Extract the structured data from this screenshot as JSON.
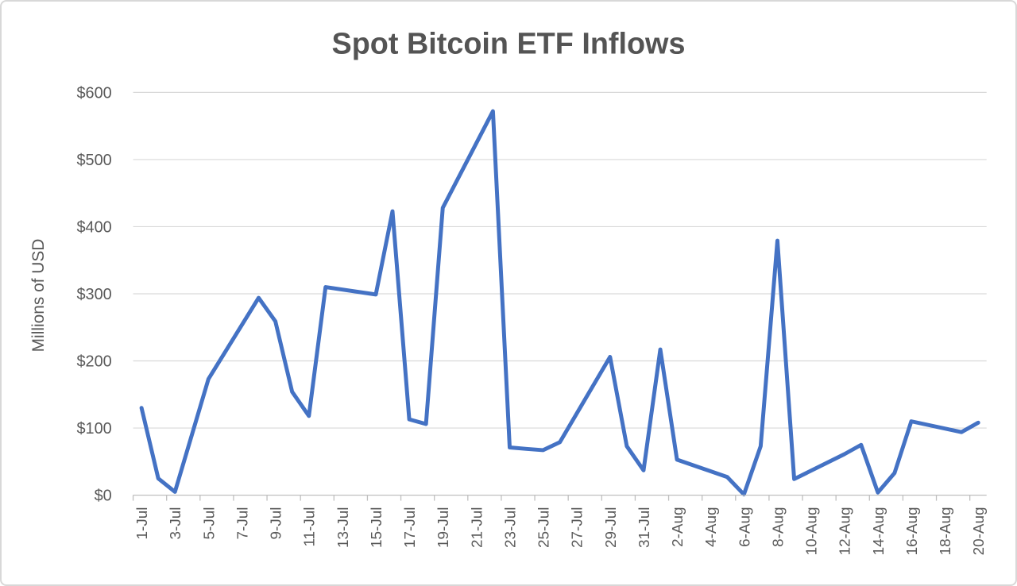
{
  "chart": {
    "title": "Spot Bitcoin ETF Inflows",
    "y_axis_title": "Millions of USD",
    "colors": {
      "line": "#4472C4",
      "gridline": "#D9D9D9",
      "axis_line": "#BFBFBF",
      "tick_mark": "#BFBFBF",
      "tick_label": "#595959",
      "title": "#545454",
      "background": "#FFFFFF",
      "frame_border": "#D8D8D8"
    }
  },
  "chart_data": {
    "type": "line",
    "title": "Spot Bitcoin ETF Inflows",
    "xlabel": "",
    "ylabel": "Millions of USD",
    "ylim": [
      0,
      600
    ],
    "grid": "horizontal",
    "legend": "none",
    "gap_handling": "connect-across-blank-days",
    "y_tick_values": [
      0,
      100,
      200,
      300,
      400,
      500,
      600
    ],
    "y_tick_labels": [
      "$0",
      "$100",
      "$200",
      "$300",
      "$400",
      "$500",
      "$600"
    ],
    "x_tick_label_interval": 2,
    "x_tick_labels": [
      "1-Jul",
      "3-Jul",
      "5-Jul",
      "7-Jul",
      "9-Jul",
      "11-Jul",
      "13-Jul",
      "15-Jul",
      "17-Jul",
      "19-Jul",
      "21-Jul",
      "23-Jul",
      "25-Jul",
      "27-Jul",
      "29-Jul",
      "31-Jul",
      "2-Aug",
      "4-Aug",
      "6-Aug",
      "8-Aug",
      "10-Aug",
      "12-Aug",
      "14-Aug",
      "16-Aug",
      "18-Aug",
      "20-Aug"
    ],
    "categories": [
      "1-Jul",
      "2-Jul",
      "3-Jul",
      "4-Jul",
      "5-Jul",
      "6-Jul",
      "7-Jul",
      "8-Jul",
      "9-Jul",
      "10-Jul",
      "11-Jul",
      "12-Jul",
      "13-Jul",
      "14-Jul",
      "15-Jul",
      "16-Jul",
      "17-Jul",
      "18-Jul",
      "19-Jul",
      "20-Jul",
      "21-Jul",
      "22-Jul",
      "23-Jul",
      "24-Jul",
      "25-Jul",
      "26-Jul",
      "27-Jul",
      "28-Jul",
      "29-Jul",
      "30-Jul",
      "31-Jul",
      "1-Aug",
      "2-Aug",
      "3-Aug",
      "4-Aug",
      "5-Aug",
      "6-Aug",
      "7-Aug",
      "8-Aug",
      "9-Aug",
      "10-Aug",
      "11-Aug",
      "12-Aug",
      "13-Aug",
      "14-Aug",
      "15-Aug",
      "16-Aug",
      "17-Aug",
      "18-Aug",
      "19-Aug",
      "20-Aug"
    ],
    "values": [
      130,
      25,
      5,
      null,
      173,
      null,
      null,
      294,
      259,
      154,
      118,
      310,
      null,
      null,
      299,
      423,
      113,
      106,
      428,
      null,
      null,
      572,
      71,
      69,
      67,
      79,
      null,
      null,
      206,
      73,
      37,
      217,
      53,
      null,
      null,
      27,
      1,
      73,
      379,
      24,
      null,
      null,
      61,
      75,
      4,
      33,
      110,
      null,
      null,
      94,
      108
    ]
  }
}
